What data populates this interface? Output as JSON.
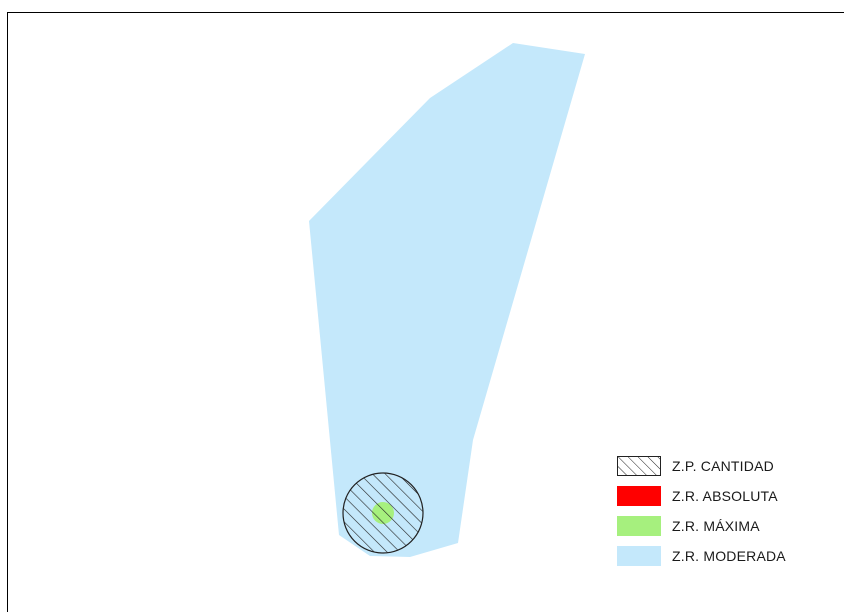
{
  "map": {
    "zones": {
      "moderada_color": "#c4e8fb",
      "maxima_color": "#a6f07e",
      "absoluta_color": "#ff0000",
      "cantidad_hatch_color": "#222222"
    }
  },
  "legend": {
    "items": [
      {
        "label": "Z.P. CANTIDAD",
        "swatch": "hatched",
        "color": "#222222"
      },
      {
        "label": "Z.R. ABSOLUTA",
        "swatch": "solid",
        "color": "#ff0000"
      },
      {
        "label": "Z.R. MÁXIMA",
        "swatch": "solid",
        "color": "#a6f07e"
      },
      {
        "label": "Z.R. MODERADA",
        "swatch": "solid",
        "color": "#c4e8fb"
      }
    ]
  }
}
